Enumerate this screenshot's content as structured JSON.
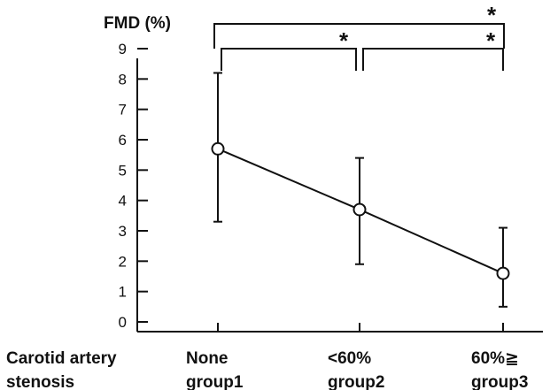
{
  "chart_data": {
    "type": "line",
    "ylabel": "FMD (%)",
    "xlabel": "Carotid artery stenosis",
    "xlabel_lines": [
      "Carotid artery",
      "stenosis"
    ],
    "ylim": [
      0,
      9
    ],
    "yticks": [
      0,
      1,
      2,
      3,
      4,
      5,
      6,
      7,
      8,
      9
    ],
    "categories": [
      "None group1",
      "<60% group2",
      "60%≧ group3"
    ],
    "category_lines": [
      [
        "None",
        "group1"
      ],
      [
        "<60%",
        "group2"
      ],
      [
        "60%≧",
        "group3"
      ]
    ],
    "series": [
      {
        "values": [
          5.7,
          3.7,
          1.6
        ],
        "error_upper": [
          8.2,
          5.4,
          3.1
        ],
        "error_lower": [
          3.3,
          1.9,
          0.5
        ]
      }
    ],
    "significance": [
      {
        "from": 0,
        "to": 2,
        "label": "*"
      },
      {
        "from": 0,
        "to": 1,
        "label": "*"
      },
      {
        "from": 1,
        "to": 2,
        "label": "*"
      }
    ],
    "grid": false,
    "marker": "open-circle"
  }
}
